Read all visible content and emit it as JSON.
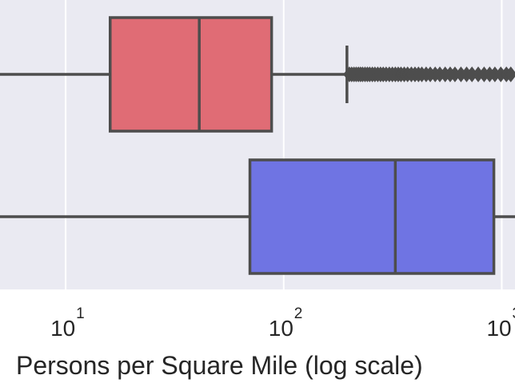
{
  "chart_data": {
    "type": "boxplot",
    "orientation": "horizontal",
    "scale": "log",
    "xlabel": "Persons per Square Mile (log scale)",
    "xlim": [
      5,
      1150
    ],
    "grid": true,
    "background": "#eaeaf2",
    "edge_color": "#4d4d4d",
    "ticks": [
      {
        "value": 10,
        "base": "10",
        "exp": "1"
      },
      {
        "value": 100,
        "base": "10",
        "exp": "2"
      },
      {
        "value": 1000,
        "base": "10",
        "exp": "3"
      }
    ],
    "series": [
      {
        "color": "#e06c75",
        "whisker_low": 3,
        "q1": 16,
        "median": 41,
        "q3": 88,
        "whisker_high": 195,
        "outliers": [
          200,
          205,
          210,
          215,
          220,
          225,
          230,
          236,
          242,
          248,
          255,
          262,
          270,
          278,
          286,
          295,
          305,
          315,
          325,
          335,
          345,
          357,
          370,
          385,
          400,
          415,
          430,
          450,
          470,
          495,
          520,
          550,
          580,
          610,
          650,
          690,
          730,
          780,
          830,
          880,
          930,
          990,
          1050,
          1100
        ]
      },
      {
        "color": "#6f74e3",
        "whisker_low": 3,
        "q1": 70,
        "median": 325,
        "q3": 920,
        "whisker_high": 2000,
        "outliers": []
      }
    ]
  }
}
